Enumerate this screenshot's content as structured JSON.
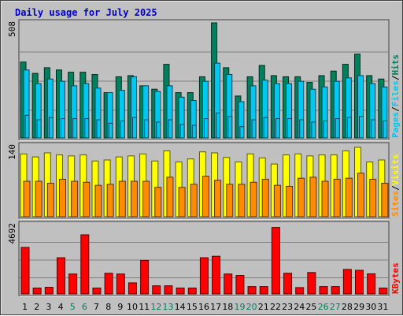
{
  "title": "Daily usage for July 2025",
  "colors": {
    "background": "#c0c0c0",
    "panel": "#c0c0c0",
    "hits": "#00805c",
    "files": "#00c8f0",
    "pages": "#00c8f0",
    "visits": "#ffff00",
    "sites": "#ff8c00",
    "kbytes": "#ff0000",
    "title_text": "#0000cc",
    "weekend_label": "#00805c"
  },
  "chart_data": [
    {
      "type": "bar",
      "panel": "hits-files-pages",
      "categories": [
        "1",
        "2",
        "3",
        "4",
        "5",
        "6",
        "7",
        "8",
        "9",
        "10",
        "11",
        "12",
        "13",
        "14",
        "15",
        "16",
        "17",
        "18",
        "19",
        "20",
        "21",
        "22",
        "23",
        "24",
        "25",
        "26",
        "27",
        "28",
        "29",
        "30",
        "31"
      ],
      "weekend_days": [
        "5",
        "6",
        "12",
        "13",
        "19",
        "20",
        "26",
        "27"
      ],
      "max_label": "508",
      "ylim": [
        0,
        508
      ],
      "legend": [
        "Hits",
        "Files",
        "Pages"
      ],
      "series": [
        {
          "name": "Hits",
          "values": [
            335,
            285,
            310,
            300,
            290,
            290,
            280,
            200,
            270,
            275,
            230,
            215,
            325,
            200,
            200,
            270,
            508,
            310,
            185,
            270,
            320,
            275,
            270,
            270,
            245,
            275,
            295,
            325,
            370,
            275,
            260
          ]
        },
        {
          "name": "Files",
          "values": [
            300,
            240,
            260,
            250,
            230,
            240,
            220,
            200,
            210,
            270,
            230,
            205,
            230,
            180,
            165,
            250,
            330,
            280,
            160,
            230,
            255,
            240,
            240,
            250,
            215,
            225,
            250,
            265,
            275,
            240,
            225
          ]
        },
        {
          "name": "Pages",
          "values": [
            100,
            80,
            90,
            85,
            85,
            85,
            80,
            65,
            75,
            90,
            80,
            70,
            80,
            60,
            55,
            85,
            110,
            95,
            50,
            80,
            90,
            85,
            85,
            80,
            70,
            75,
            85,
            90,
            95,
            80,
            75
          ]
        }
      ]
    },
    {
      "type": "bar",
      "panel": "visits-sites",
      "categories": [
        "1",
        "2",
        "3",
        "4",
        "5",
        "6",
        "7",
        "8",
        "9",
        "10",
        "11",
        "12",
        "13",
        "14",
        "15",
        "16",
        "17",
        "18",
        "19",
        "20",
        "21",
        "22",
        "23",
        "24",
        "25",
        "26",
        "27",
        "28",
        "29",
        "30",
        "31"
      ],
      "max_label": "140",
      "ylim": [
        0,
        140
      ],
      "legend": [
        "Visits",
        "Sites"
      ],
      "series": [
        {
          "name": "Visits",
          "values": [
            124,
            118,
            126,
            122,
            120,
            122,
            110,
            112,
            118,
            120,
            124,
            110,
            130,
            108,
            114,
            128,
            126,
            117,
            108,
            124,
            116,
            104,
            122,
            124,
            120,
            122,
            122,
            130,
            137,
            108,
            112
          ]
        },
        {
          "name": "Sites",
          "values": [
            70,
            70,
            66,
            74,
            70,
            68,
            62,
            64,
            70,
            70,
            70,
            58,
            78,
            58,
            64,
            80,
            72,
            64,
            64,
            68,
            74,
            62,
            60,
            76,
            78,
            70,
            74,
            76,
            86,
            74,
            66
          ]
        }
      ]
    },
    {
      "type": "bar",
      "panel": "kbytes",
      "categories": [
        "1",
        "2",
        "3",
        "4",
        "5",
        "6",
        "7",
        "8",
        "9",
        "10",
        "11",
        "12",
        "13",
        "14",
        "15",
        "16",
        "17",
        "18",
        "19",
        "20",
        "21",
        "22",
        "23",
        "24",
        "25",
        "26",
        "27",
        "28",
        "29",
        "30",
        "31"
      ],
      "max_label": "4692",
      "ylim": [
        0,
        4692
      ],
      "legend": [
        "KBytes"
      ],
      "series": [
        {
          "name": "KBytes",
          "values": [
            3150,
            400,
            450,
            2450,
            1350,
            4000,
            400,
            1400,
            1350,
            750,
            2270,
            550,
            550,
            400,
            400,
            2450,
            2550,
            1350,
            1250,
            500,
            500,
            4500,
            1400,
            430,
            1450,
            500,
            500,
            1660,
            1600,
            1360,
            400
          ]
        }
      ]
    }
  ]
}
